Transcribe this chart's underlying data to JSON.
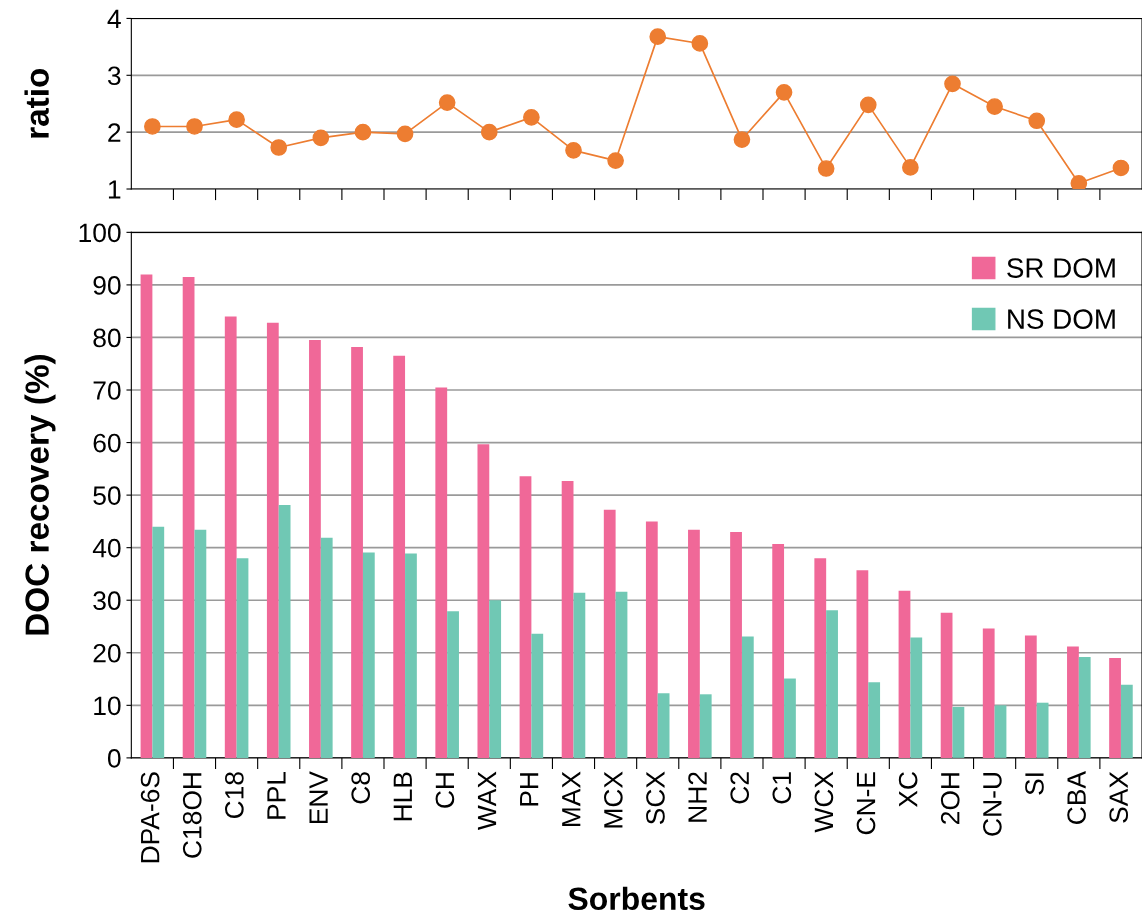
{
  "chart_data": [
    {
      "type": "line",
      "ylabel": "ratio",
      "ylim": [
        1,
        4
      ],
      "yticks": [
        1,
        2,
        3,
        4
      ],
      "grid": "y",
      "marker": "circle",
      "line_style": "solid",
      "tick_labels": "y",
      "series": [
        {
          "color": "#ed7d31",
          "values": [
            2.1,
            2.1,
            2.22,
            1.73,
            1.9,
            2.0,
            1.97,
            2.52,
            2.0,
            2.26,
            1.68,
            1.5,
            3.68,
            3.56,
            1.87,
            2.7,
            1.36,
            2.48,
            1.38,
            2.85,
            2.45,
            2.2,
            1.1,
            1.37
          ]
        }
      ]
    },
    {
      "type": "bar",
      "categories": [
        "DPA-6S",
        "C18OH",
        "C18",
        "PPL",
        "ENV",
        "C8",
        "HLB",
        "CH",
        "WAX",
        "PH",
        "MAX",
        "MCX",
        "SCX",
        "NH2",
        "C2",
        "C1",
        "WCX",
        "CN-E",
        "XC",
        "2OH",
        "CN-U",
        "SI",
        "CBA",
        "SAX"
      ],
      "xlabel": "Sorbents",
      "ylabel": "DOC recovery (%)",
      "ylim": [
        0,
        100
      ],
      "yticks": [
        0,
        10,
        20,
        30,
        40,
        50,
        60,
        70,
        80,
        90,
        100
      ],
      "grid": "y",
      "legend": "top right",
      "series": [
        {
          "name": "SR DOM",
          "color": "#f06898",
          "values": [
            92,
            91.5,
            84,
            82.8,
            79.5,
            78.2,
            76.5,
            70.5,
            59.7,
            53.6,
            52.7,
            47.2,
            45,
            43.4,
            43,
            40.7,
            38,
            35.7,
            31.8,
            27.6,
            24.6,
            23.3,
            21.2,
            19
          ]
        },
        {
          "name": "NS DOM",
          "color": "#70c8b4",
          "values": [
            44,
            43.4,
            38,
            48.1,
            41.9,
            39.1,
            38.9,
            27.9,
            30,
            23.6,
            31.4,
            31.6,
            12.3,
            12.1,
            23.1,
            15.1,
            28.1,
            14.4,
            22.9,
            9.7,
            10,
            10.5,
            19.2,
            13.9
          ]
        }
      ]
    }
  ]
}
